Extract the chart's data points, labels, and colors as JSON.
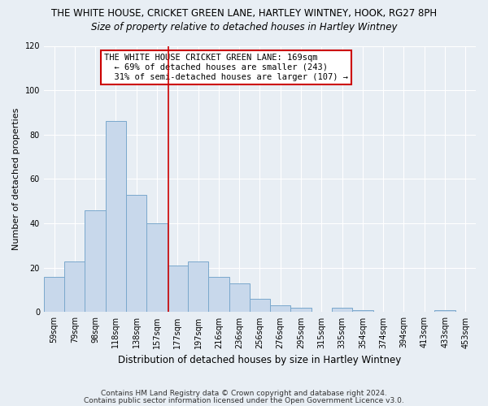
{
  "title": "THE WHITE HOUSE, CRICKET GREEN LANE, HARTLEY WINTNEY, HOOK, RG27 8PH",
  "subtitle": "Size of property relative to detached houses in Hartley Wintney",
  "xlabel": "Distribution of detached houses by size in Hartley Wintney",
  "ylabel": "Number of detached properties",
  "bar_labels": [
    "59sqm",
    "79sqm",
    "98sqm",
    "118sqm",
    "138sqm",
    "157sqm",
    "177sqm",
    "197sqm",
    "216sqm",
    "236sqm",
    "256sqm",
    "276sqm",
    "295sqm",
    "315sqm",
    "335sqm",
    "354sqm",
    "374sqm",
    "394sqm",
    "413sqm",
    "433sqm",
    "453sqm"
  ],
  "bar_heights": [
    16,
    23,
    46,
    86,
    53,
    40,
    21,
    23,
    16,
    13,
    6,
    3,
    2,
    0,
    2,
    1,
    0,
    0,
    0,
    1,
    0
  ],
  "bar_color": "#c8d8eb",
  "bar_edge_color": "#7aa8cc",
  "vline_color": "#cc0000",
  "vline_pos": 5.55,
  "ylim": [
    0,
    120
  ],
  "yticks": [
    0,
    20,
    40,
    60,
    80,
    100,
    120
  ],
  "annotation_title": "THE WHITE HOUSE CRICKET GREEN LANE: 169sqm",
  "annotation_line1": "← 69% of detached houses are smaller (243)",
  "annotation_line2": "31% of semi-detached houses are larger (107) →",
  "annotation_box_color": "#ffffff",
  "annotation_box_edge": "#cc0000",
  "footnote1": "Contains HM Land Registry data © Crown copyright and database right 2024.",
  "footnote2": "Contains public sector information licensed under the Open Government Licence v3.0.",
  "background_color": "#e8eef4",
  "plot_bg_color": "#e8eef4",
  "grid_color": "#ffffff",
  "title_fontsize": 8.5,
  "subtitle_fontsize": 8.5,
  "xlabel_fontsize": 8.5,
  "ylabel_fontsize": 8,
  "tick_fontsize": 7,
  "annotation_fontsize": 7.5,
  "footnote_fontsize": 6.5
}
